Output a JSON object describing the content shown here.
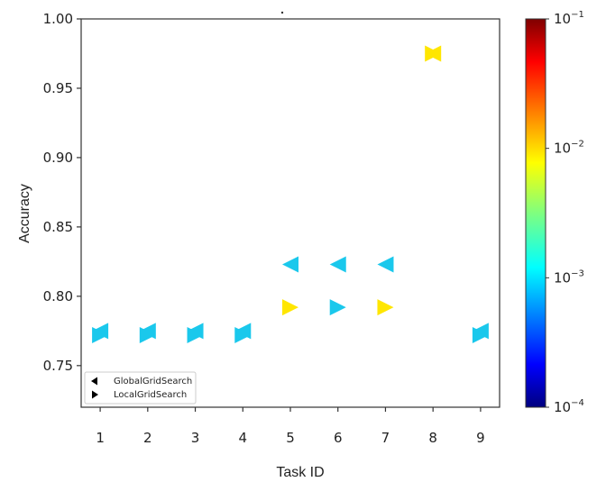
{
  "chart_data": {
    "type": "scatter",
    "title": "",
    "xlabel": "Task ID",
    "ylabel": "Accuracy",
    "xlim": [
      0.6,
      9.4
    ],
    "ylim": [
      0.72,
      1.0
    ],
    "x_ticks": [
      "1",
      "2",
      "3",
      "4",
      "5",
      "6",
      "7",
      "8",
      "9"
    ],
    "y_ticks": [
      "0.75",
      "0.80",
      "0.85",
      "0.90",
      "0.95",
      "1.00"
    ],
    "grid": false,
    "legend_position": "bottom-left",
    "series": [
      {
        "name": "GlobalGridSearch",
        "marker": "triangle-left",
        "points": [
          {
            "x": 1,
            "y": 0.775,
            "c": 0.0011
          },
          {
            "x": 2,
            "y": 0.775,
            "c": 0.0011
          },
          {
            "x": 3,
            "y": 0.775,
            "c": 0.0011
          },
          {
            "x": 4,
            "y": 0.775,
            "c": 0.0011
          },
          {
            "x": 5,
            "y": 0.823,
            "c": 0.0011
          },
          {
            "x": 6,
            "y": 0.823,
            "c": 0.0011
          },
          {
            "x": 7,
            "y": 0.823,
            "c": 0.0011
          },
          {
            "x": 8,
            "y": 0.975,
            "c": 0.01
          },
          {
            "x": 9,
            "y": 0.775,
            "c": 0.0011
          }
        ]
      },
      {
        "name": "LocalGridSearch",
        "marker": "triangle-right",
        "points": [
          {
            "x": 1,
            "y": 0.772,
            "c": 0.0011
          },
          {
            "x": 2,
            "y": 0.772,
            "c": 0.0011
          },
          {
            "x": 3,
            "y": 0.772,
            "c": 0.0011
          },
          {
            "x": 4,
            "y": 0.772,
            "c": 0.0011
          },
          {
            "x": 5,
            "y": 0.792,
            "c": 0.01
          },
          {
            "x": 6,
            "y": 0.792,
            "c": 0.0011
          },
          {
            "x": 7,
            "y": 0.792,
            "c": 0.01
          },
          {
            "x": 8,
            "y": 0.975,
            "c": 0.01
          },
          {
            "x": 9,
            "y": 0.772,
            "c": 0.0011
          }
        ]
      }
    ],
    "colorbar": {
      "scale": "log",
      "colormap": "jet",
      "range": [
        0.0001,
        0.1
      ],
      "ticks": [
        {
          "value": 0.1,
          "base": "10",
          "exp": "−1"
        },
        {
          "value": 0.01,
          "base": "10",
          "exp": "−2"
        },
        {
          "value": 0.001,
          "base": "10",
          "exp": "−3"
        },
        {
          "value": 0.0001,
          "base": "10",
          "exp": "−4"
        }
      ]
    },
    "marker_colors": {
      "cyan": "#1ac8ec",
      "yellow": "#ffe600"
    }
  }
}
